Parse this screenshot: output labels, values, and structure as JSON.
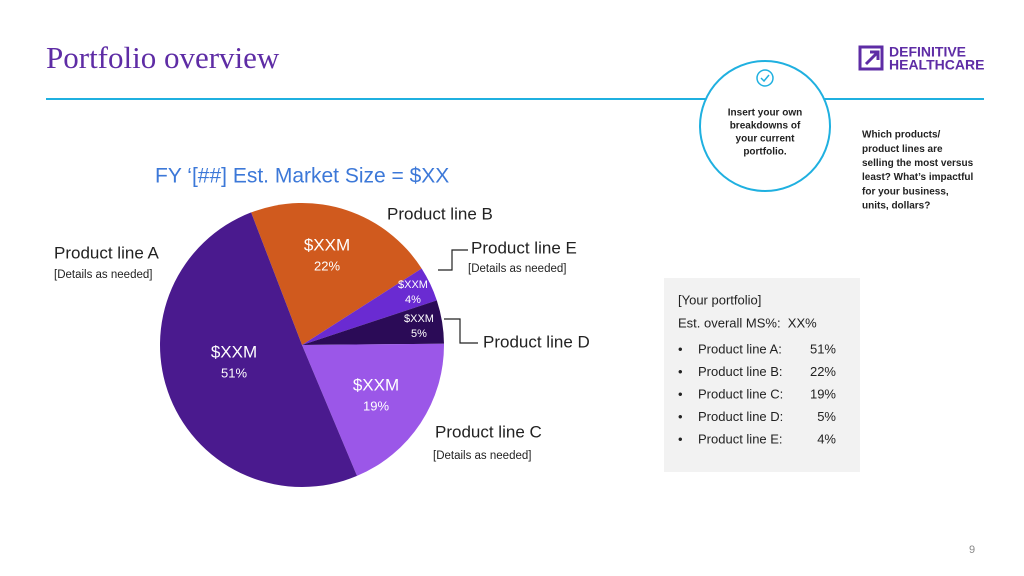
{
  "header": {
    "title": "Portfolio overview",
    "logo": [
      "DEFINITIVE",
      "HEALTHCARE"
    ]
  },
  "callout": {
    "circle_text": [
      "Insert your own",
      "breakdowns of",
      "your current",
      "portfolio."
    ],
    "side_text": [
      "Which products/",
      "product lines are",
      "selling the most versus",
      "least? What’s impactful",
      "for your business,",
      "units, dollars?"
    ]
  },
  "chart_data": {
    "type": "pie",
    "title": "FY ‘[##] Est. Market Size = $XX",
    "categories": [
      "Product line A",
      "Product line B",
      "Product line C",
      "Product line D",
      "Product line E"
    ],
    "values": [
      51,
      22,
      19,
      5,
      4
    ],
    "value_labels": [
      "51%",
      "22%",
      "19%",
      "5%",
      "4%"
    ],
    "slice_labels": [
      "$XXM",
      "$XXM",
      "$XXM",
      "$XXM",
      "$XXM"
    ],
    "colors": [
      "#4a1a8e",
      "#d05a1e",
      "#9b57e8",
      "#2b0b57",
      "#6a2bd2"
    ],
    "annotations": [
      "[Details as needed]",
      "[Details as needed]",
      "[Details as needed]"
    ]
  },
  "portfolio": {
    "heading": "[Your portfolio]",
    "overall": "Est. overall MS%:  XX%",
    "items": [
      {
        "label": "Product line A:",
        "value": "51%"
      },
      {
        "label": "Product line B:",
        "value": "22%"
      },
      {
        "label": "Product line C:",
        "value": "19%"
      },
      {
        "label": "Product line D:",
        "value": "5%"
      },
      {
        "label": "Product line E:",
        "value": "4%"
      }
    ]
  },
  "footer": {
    "page": "9"
  }
}
